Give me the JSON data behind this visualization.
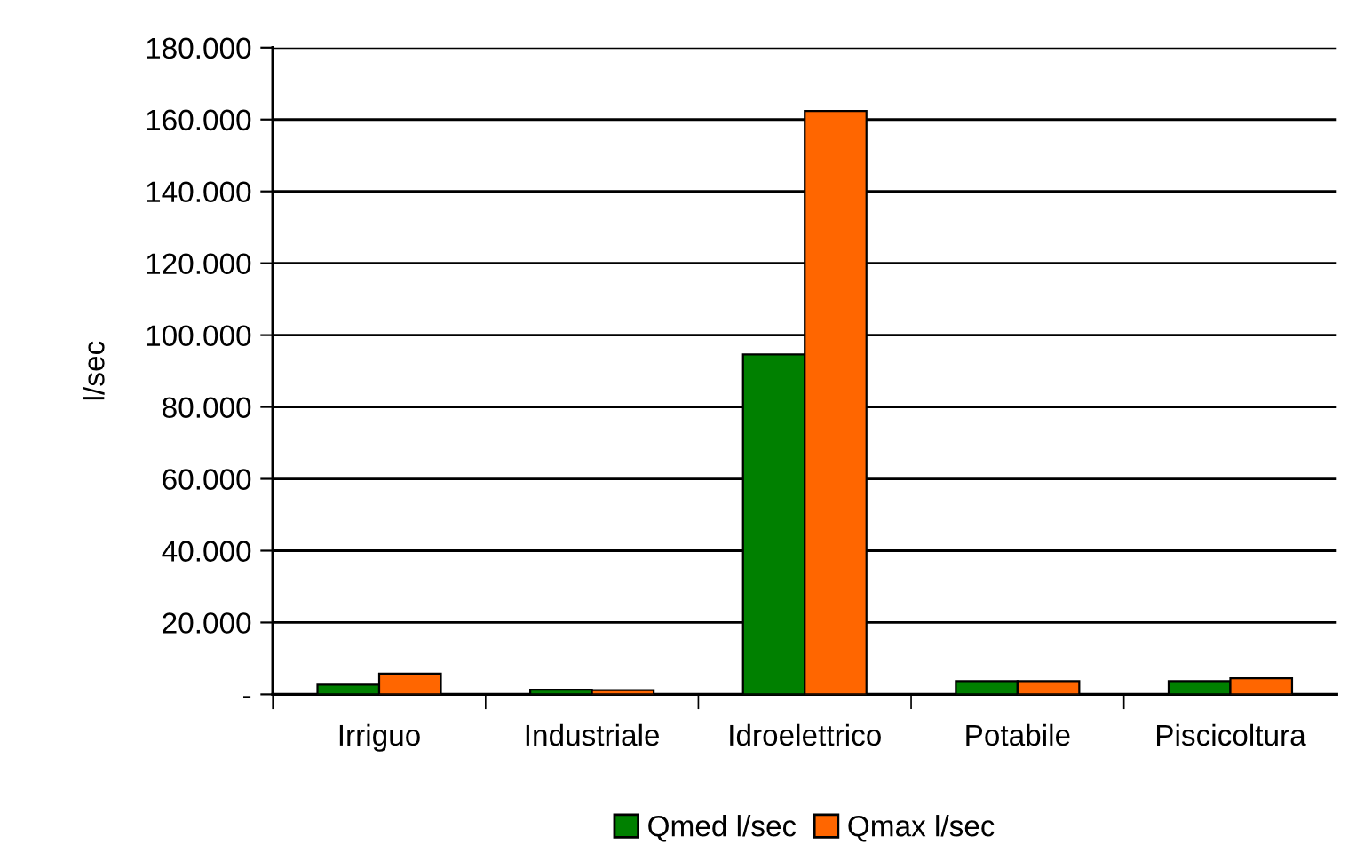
{
  "chart_data": {
    "type": "bar",
    "ylabel": "l/sec",
    "categories": [
      "Irriguo",
      "Industriale",
      "Idroelettrico",
      "Potabile",
      "Piscicoltura"
    ],
    "series": [
      {
        "name": "Qmed l/sec",
        "color": "#008000",
        "values": [
          2700,
          1300,
          94600,
          3700,
          3700
        ]
      },
      {
        "name": "Qmax l/sec",
        "color": "#ff6600",
        "values": [
          5800,
          1200,
          162400,
          3700,
          4500
        ]
      }
    ],
    "ylim": [
      0,
      180000
    ],
    "yticks": [
      {
        "value": 0,
        "label": "-"
      },
      {
        "value": 20000,
        "label": "20.000"
      },
      {
        "value": 40000,
        "label": "40.000"
      },
      {
        "value": 60000,
        "label": "60.000"
      },
      {
        "value": 80000,
        "label": "80.000"
      },
      {
        "value": 100000,
        "label": "100.000"
      },
      {
        "value": 120000,
        "label": "120.000"
      },
      {
        "value": 140000,
        "label": "140.000"
      },
      {
        "value": 160000,
        "label": "160.000"
      },
      {
        "value": 180000,
        "label": "180.000"
      }
    ],
    "grid": "y",
    "legend": "bottom"
  }
}
